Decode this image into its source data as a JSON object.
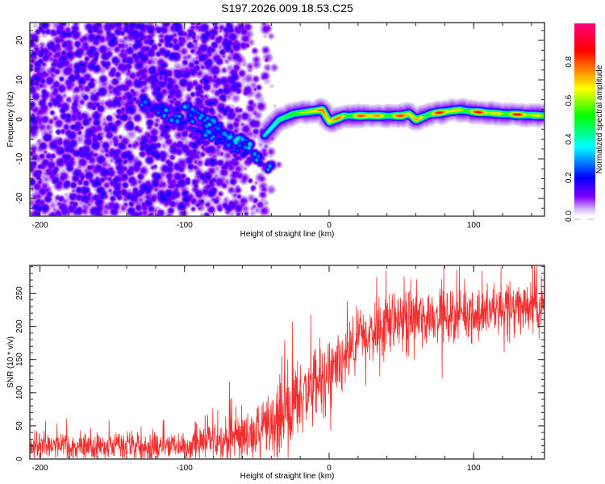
{
  "figure_title": "S197.2026.009.18.53.C25",
  "chart_data": [
    {
      "type": "heatmap",
      "name": "spectrogram",
      "title": "S197.2026.009.18.53.C25",
      "xlabel": "Height of straight line (km)",
      "ylabel": "Frequency (Hz)",
      "xlim": [
        -207,
        149
      ],
      "ylim": [
        -24.5,
        24.5
      ],
      "xticks": [
        -200,
        -100,
        0,
        100
      ],
      "xtick_labels": [
        "-200",
        "-100",
        "0",
        "100"
      ],
      "yticks": [
        -20,
        -10,
        0,
        10,
        20
      ],
      "ytick_labels": [
        "-20",
        "-10",
        "0",
        "10",
        "20"
      ],
      "colormap": "rainbow (white-violet-blue-cyan-green-yellow-red-magenta)",
      "colorbar": {
        "label": "Normalized spectral amplitude",
        "range": [
          0,
          1
        ],
        "ticks": [
          0.0,
          0.2,
          0.4,
          0.6,
          0.8
        ],
        "tick_labels": [
          "0.0",
          "0.2",
          "0.4",
          "0.6",
          "0.8"
        ],
        "stops": [
          "#ffffff",
          "#dcc8f5",
          "#8000ff",
          "#0000ff",
          "#00ffff",
          "#00ff00",
          "#ffff00",
          "#ff8000",
          "#ff0000",
          "#ff0080"
        ]
      },
      "features": {
        "noise_region_km": [
          -207,
          -50
        ],
        "noise_amplitude": 0.15,
        "descending_branches": [
          {
            "x": [
              -130,
              -40
            ],
            "y": [
              5,
              -12
            ],
            "amplitude": 0.3
          },
          {
            "x": [
              -100,
              -55
            ],
            "y": [
              3,
              -7
            ],
            "amplitude": 0.35
          }
        ],
        "main_signal": {
          "points": [
            [
              -45,
              -4
            ],
            [
              -35,
              0
            ],
            [
              -25,
              1.5
            ],
            [
              -15,
              2
            ],
            [
              -5,
              2.5
            ],
            [
              0,
              -0.5
            ],
            [
              10,
              1
            ],
            [
              30,
              1
            ],
            [
              50,
              1
            ],
            [
              55,
              1.5
            ],
            [
              60,
              0
            ],
            [
              70,
              1.5
            ],
            [
              90,
              2.5
            ],
            [
              100,
              2
            ],
            [
              120,
              1.5
            ],
            [
              149,
              1
            ]
          ],
          "amplitude": 0.9
        }
      }
    },
    {
      "type": "line",
      "name": "snr",
      "xlabel": "Height of straight line (km)",
      "ylabel": "SNR (10 * v/v)",
      "xlim": [
        -207,
        149
      ],
      "ylim": [
        0,
        292
      ],
      "xticks": [
        -200,
        -100,
        0,
        100
      ],
      "xtick_labels": [
        "-200",
        "-100",
        "0",
        "100"
      ],
      "yticks": [
        0,
        50,
        100,
        150,
        200,
        250
      ],
      "ytick_labels": [
        "0",
        "50",
        "100",
        "150",
        "200",
        "250"
      ],
      "color": "#f03030",
      "trend": {
        "x": [
          -207,
          -150,
          -100,
          -80,
          -60,
          -40,
          -30,
          -20,
          -10,
          0,
          10,
          20,
          30,
          40,
          50,
          60,
          80,
          100,
          120,
          149
        ],
        "y": [
          18,
          18,
          20,
          28,
          35,
          50,
          75,
          95,
          110,
          120,
          145,
          175,
          195,
          205,
          212,
          215,
          218,
          222,
          228,
          235
        ]
      },
      "noise_amplitude": {
        "x": [
          -207,
          -100,
          -50,
          -30,
          0,
          50,
          149
        ],
        "y": [
          14,
          16,
          30,
          45,
          40,
          30,
          28
        ]
      }
    }
  ]
}
